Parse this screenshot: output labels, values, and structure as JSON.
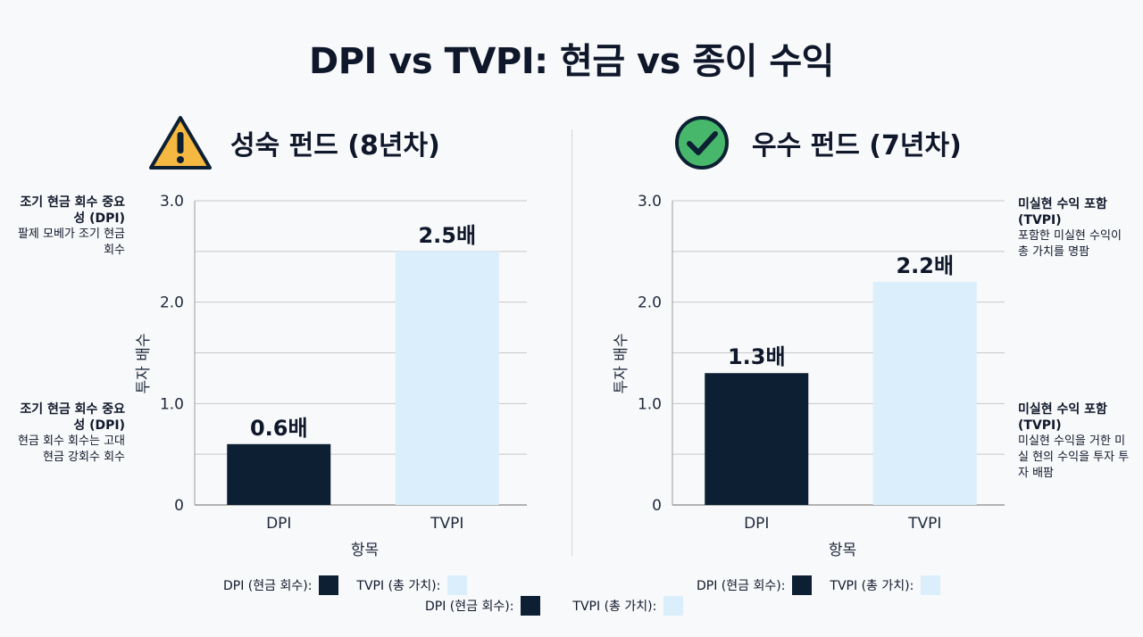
{
  "title": "DPI vs TVPI: 현금 vs 종이 수익",
  "colors": {
    "dpi": "#0d1f33",
    "tvpi": "#dbeefc",
    "warning": "#f5b841",
    "check": "#47b86b",
    "grid": "#c8c8c8"
  },
  "panels": {
    "left": {
      "label": "성숙 펀드 (8년차)",
      "icon": "warning-icon"
    },
    "right": {
      "label": "우수 펀드 (7년차)",
      "icon": "check-icon"
    }
  },
  "notes": {
    "left_top": {
      "bold": "조기 현금 회수 중요성 (DPI)",
      "text": "팔제 모베가 조기 현금 회수"
    },
    "left_bottom": {
      "bold": "조기 현금 회수 중요성 (DPI)",
      "text": "현금 회수 회수는 고대 현금 강회수 회수"
    },
    "right_top": {
      "bold": "미실현 수익 포함 (TVPI)",
      "text": "포함한 미실현 수익이 총 가치를 명팜"
    },
    "right_bottom": {
      "bold": "미실현 수익 포함 (TVPI)",
      "text": "미실현 수익을 거한 미실 현의 수익을 투자 투자 배팜"
    }
  },
  "legend": {
    "dpi_label": "DPI (현금 회수):",
    "tvpi_label": "TVPI (총 가치):"
  },
  "chart_data": [
    {
      "type": "bar",
      "title": "성숙 펀드 (8년차)",
      "categories": [
        "DPI",
        "TVPI"
      ],
      "values": [
        0.6,
        2.5
      ],
      "value_labels": [
        "0.6배",
        "2.5배"
      ],
      "xlabel": "항목",
      "ylabel": "투자 배수",
      "ylim": [
        0,
        3.0
      ],
      "yticks": [
        0,
        1.0,
        2.0,
        3.0
      ],
      "ytick_labels": [
        "0",
        "1.0",
        "2.0",
        "3.0"
      ],
      "grid": true
    },
    {
      "type": "bar",
      "title": "우수 펀드 (7년차)",
      "categories": [
        "DPI",
        "TVPI"
      ],
      "values": [
        1.3,
        2.2
      ],
      "value_labels": [
        "1.3배",
        "2.2배"
      ],
      "xlabel": "항목",
      "ylabel": "투자 배수",
      "ylim": [
        0,
        3.0
      ],
      "yticks": [
        0,
        1.0,
        2.0,
        3.0
      ],
      "ytick_labels": [
        "0",
        "1.0",
        "2.0",
        "3.0"
      ],
      "grid": true
    }
  ]
}
